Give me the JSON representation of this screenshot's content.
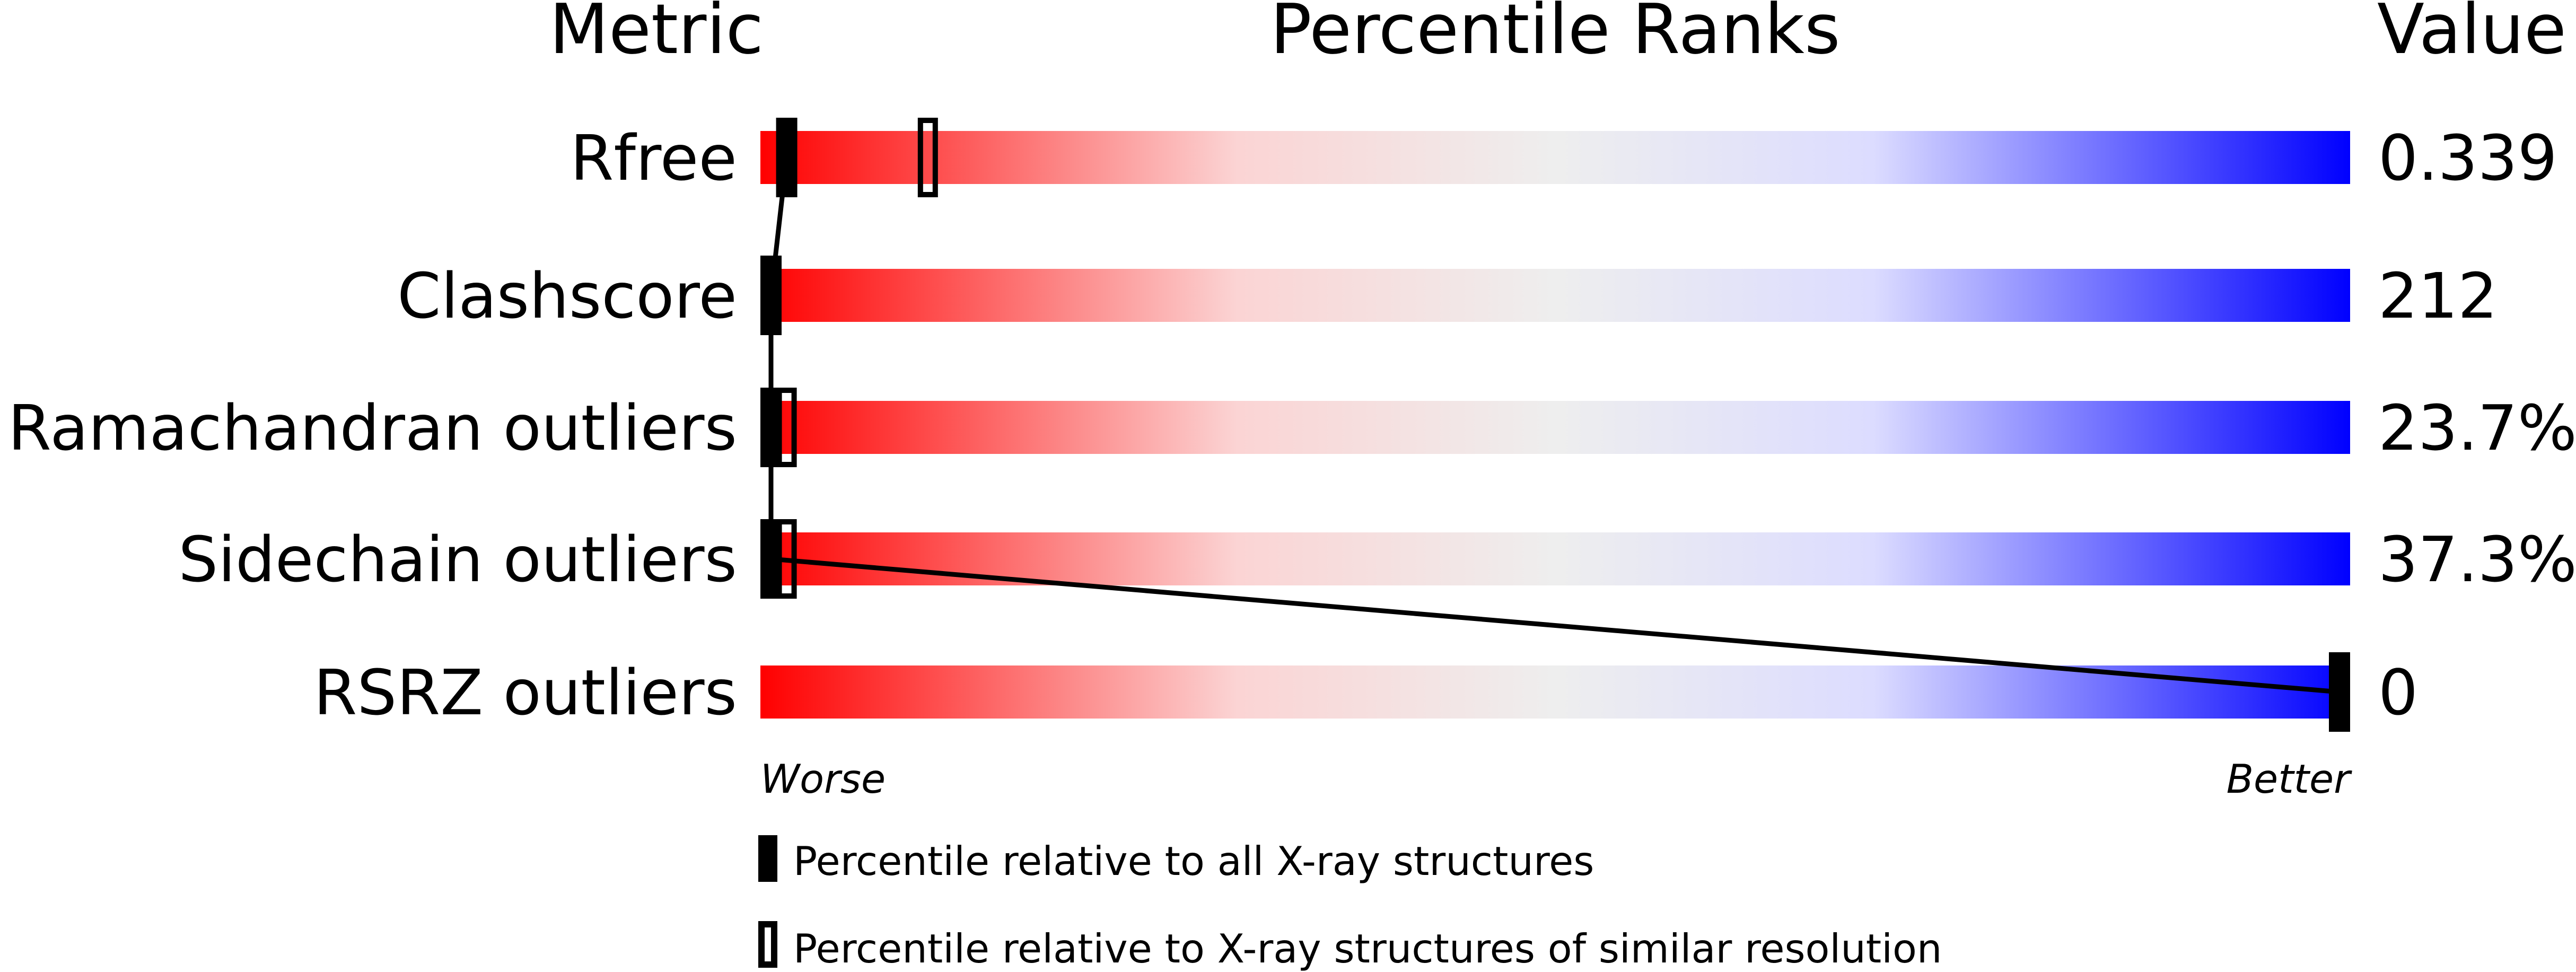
{
  "chart_data": {
    "type": "bar",
    "headers": {
      "metric": "Metric",
      "title": "Percentile Ranks",
      "value": "Value"
    },
    "xlim": [
      0,
      100
    ],
    "gradient_colors": [
      "#ff0000",
      "#eeeeee",
      "#dcdcff",
      "#0000ff"
    ],
    "rows": [
      {
        "metric": "Rfree",
        "value": "0.339",
        "percentile_all": 1,
        "percentile_similar": 10
      },
      {
        "metric": "Clashscore",
        "value": "212",
        "percentile_all": 0,
        "percentile_similar": null
      },
      {
        "metric": "Ramachandran outliers",
        "value": "23.7%",
        "percentile_all": 0,
        "percentile_similar": 1
      },
      {
        "metric": "Sidechain outliers",
        "value": "37.3%",
        "percentile_all": 0,
        "percentile_similar": 1
      },
      {
        "metric": "RSRZ outliers",
        "value": "0",
        "percentile_all": 100,
        "percentile_similar": null
      }
    ],
    "axis_labels": {
      "left": "Worse",
      "right": "Better"
    },
    "legend": {
      "all": "Percentile relative to all X-ray structures",
      "similar": "Percentile relative to X-ray structures of similar resolution"
    }
  }
}
